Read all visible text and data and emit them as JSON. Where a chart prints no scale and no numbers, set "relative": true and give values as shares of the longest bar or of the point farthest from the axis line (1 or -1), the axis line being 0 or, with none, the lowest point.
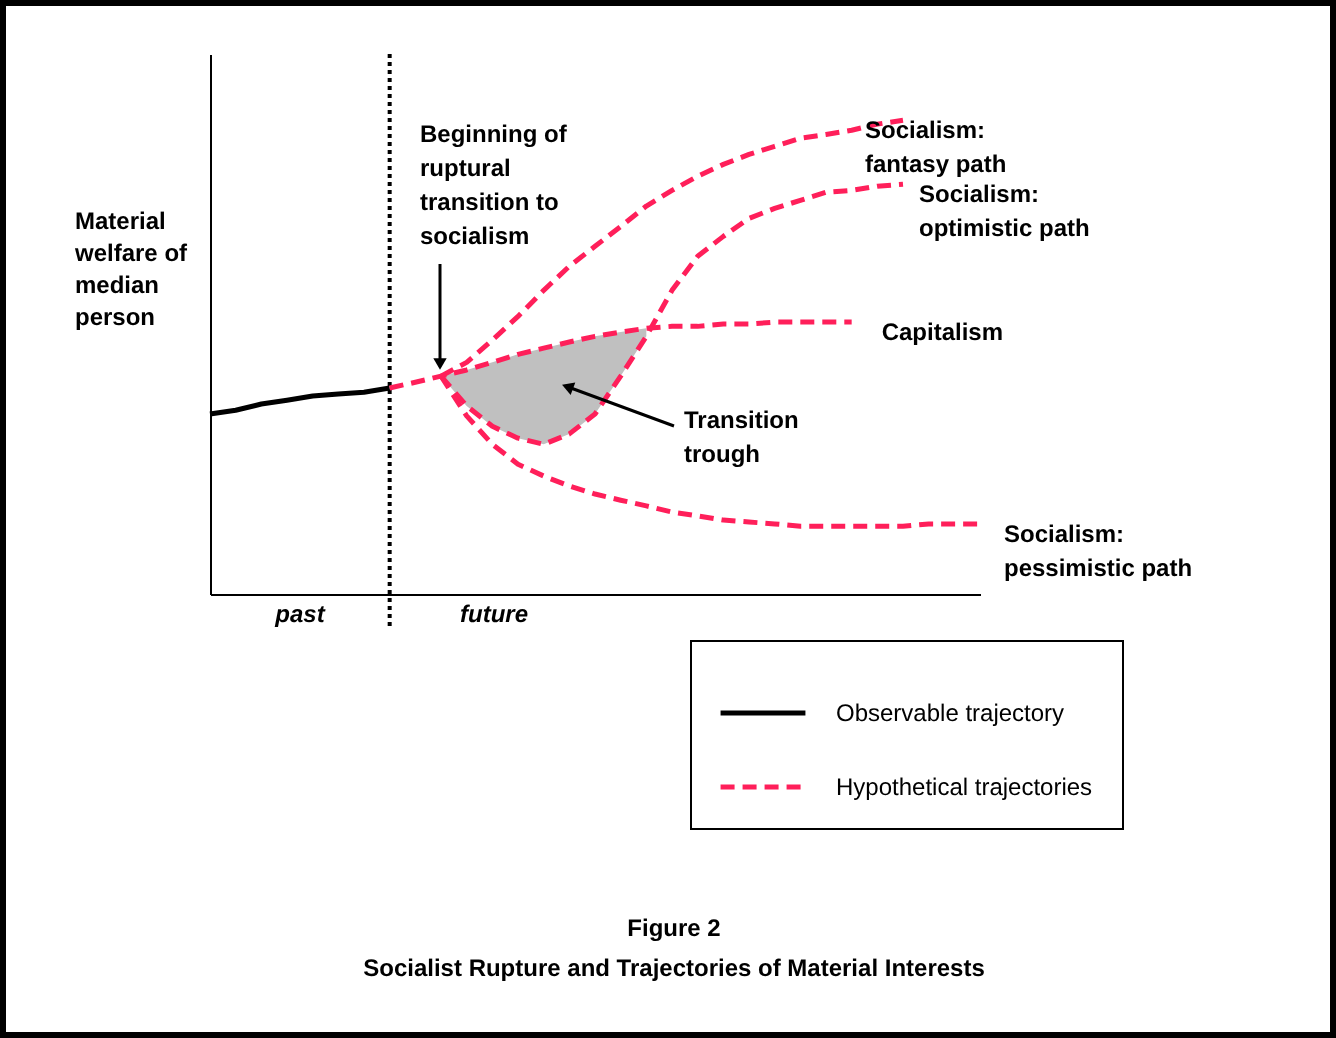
{
  "chart_data": {
    "type": "line",
    "relative": true,
    "title": "Figure 2",
    "subtitle": "Socialist Rupture and Trajectories of Material Interests",
    "ylabel": "Material welfare of median person",
    "ylim": [
      0,
      1.14
    ],
    "tick_labels": false,
    "legend": "bottom right",
    "categories": [
      null,
      null,
      null,
      null,
      null,
      null,
      null,
      null,
      null,
      null,
      null,
      null,
      null,
      null,
      null,
      null,
      null,
      null,
      null,
      null,
      null,
      null,
      null,
      null,
      null,
      null,
      null,
      null,
      null,
      null,
      null
    ],
    "series": [
      {
        "name": "Observable trajectory",
        "color": "#000000",
        "line_style": "solid",
        "values": [
          0.38,
          0.388,
          0.401,
          0.409,
          0.418,
          0.422,
          0.426,
          0.435,
          null,
          null,
          null,
          null,
          null,
          null,
          null,
          null,
          null,
          null,
          null,
          null,
          null,
          null,
          null,
          null,
          null,
          null,
          null,
          null,
          null,
          null,
          null
        ]
      },
      {
        "name": "Socialism: fantasy path",
        "color": "#ff1f5a",
        "line_style": "dashed",
        "values": [
          null,
          null,
          null,
          null,
          null,
          null,
          null,
          null,
          null,
          0.46,
          0.489,
          0.536,
          0.586,
          0.641,
          0.692,
          0.734,
          0.776,
          0.819,
          0.852,
          0.882,
          0.907,
          0.928,
          0.945,
          0.962,
          0.97,
          0.979,
          0.992,
          1,
          null,
          null,
          null
        ]
      },
      {
        "name": "Socialism: optimistic path",
        "color": "#ff1f5a",
        "line_style": "dashed",
        "values": [
          null,
          null,
          null,
          null,
          null,
          null,
          null,
          null,
          null,
          0.46,
          0.397,
          0.354,
          0.329,
          0.316,
          0.338,
          0.38,
          0.46,
          0.544,
          0.641,
          0.713,
          0.755,
          0.793,
          0.814,
          0.831,
          0.848,
          0.852,
          0.861,
          0.865,
          null,
          null,
          null
        ],
        "lower": [
          null,
          null,
          null,
          null,
          null,
          null,
          null,
          null,
          null,
          0.46,
          0.397,
          0.354,
          0.329,
          0.316,
          0.338,
          0.38,
          0.46,
          0.544,
          null,
          null,
          null,
          null,
          null,
          null,
          null,
          null,
          null,
          null,
          null,
          null,
          null
        ],
        "upper": [
          null,
          null,
          null,
          null,
          null,
          null,
          null,
          null,
          null,
          0.46,
          0.473,
          0.489,
          0.506,
          0.519,
          0.532,
          0.544,
          0.553,
          0.561,
          null,
          null,
          null,
          null,
          null,
          null,
          null,
          null,
          null,
          null,
          null,
          null,
          null
        ]
      },
      {
        "name": "Capitalism",
        "color": "#ff1f5a",
        "line_style": "dashed",
        "values": [
          null,
          null,
          null,
          null,
          null,
          null,
          null,
          0.435,
          0.447,
          0.46,
          0.473,
          0.489,
          0.506,
          0.519,
          0.532,
          0.544,
          0.553,
          0.561,
          0.565,
          0.565,
          0.57,
          0.57,
          0.574,
          0.574,
          0.574,
          0.574,
          null,
          null,
          null,
          null,
          null
        ]
      },
      {
        "name": "Socialism: pessimistic path",
        "color": "#ff1f5a",
        "line_style": "dashed",
        "values": [
          null,
          null,
          null,
          null,
          null,
          null,
          null,
          null,
          null,
          0.46,
          0.376,
          0.316,
          0.274,
          0.249,
          0.228,
          0.211,
          0.198,
          0.186,
          0.173,
          0.165,
          0.156,
          0.152,
          0.148,
          0.143,
          0.143,
          0.143,
          0.143,
          0.143,
          0.148,
          0.148,
          0.148
        ]
      }
    ],
    "ref_lines": [
      {
        "axis": "x",
        "color": "#000000",
        "line_style": "dotted"
      }
    ],
    "annotations": [
      "Beginning of ruptural transition to socialism",
      "Transition trough",
      "past",
      "future",
      "Hypothetical trajectories"
    ]
  }
}
